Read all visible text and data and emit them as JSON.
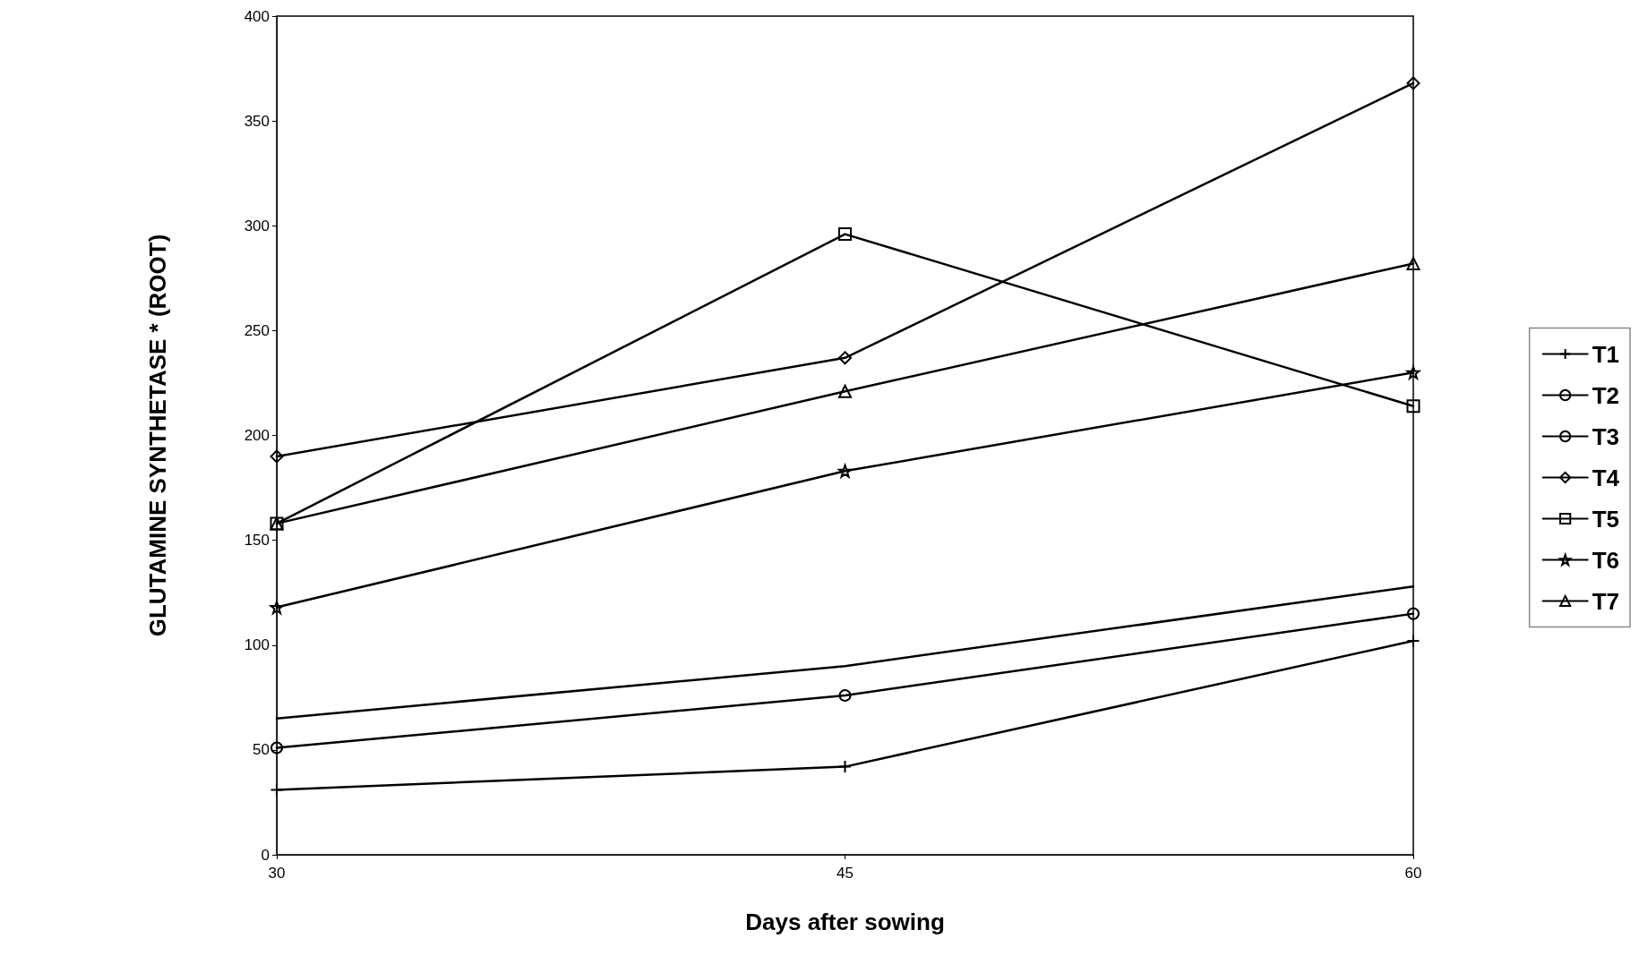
{
  "chart_data": {
    "type": "line",
    "xlabel": "Days after sowing",
    "ylabel": "GLUTAMINE SYNTHETASE * (ROOT)",
    "x": [
      30,
      45,
      60
    ],
    "xlim": [
      30,
      60
    ],
    "xticks": [
      30,
      45,
      60
    ],
    "ylim": [
      0,
      400
    ],
    "yticks": [
      0,
      50,
      100,
      150,
      200,
      250,
      300,
      350,
      400
    ],
    "grid": false,
    "legend": "right",
    "line_style": "solid",
    "series": [
      {
        "name": "T1",
        "color": "#000000",
        "marker": "cross",
        "values": [
          31,
          42,
          102
        ]
      },
      {
        "name": "T2",
        "color": "#000000",
        "marker": "none",
        "values": [
          65,
          90,
          128
        ]
      },
      {
        "name": "T3",
        "color": "#000000",
        "marker": "circle",
        "values": [
          51,
          76,
          115
        ]
      },
      {
        "name": "T4",
        "color": "#000000",
        "marker": "diamond",
        "values": [
          190,
          237,
          368
        ]
      },
      {
        "name": "T5",
        "color": "#000000",
        "marker": "square",
        "values": [
          158,
          296,
          214
        ]
      },
      {
        "name": "T6",
        "color": "#000000",
        "marker": "star",
        "values": [
          118,
          183,
          230
        ]
      },
      {
        "name": "T7",
        "color": "#000000",
        "marker": "triangle",
        "values": [
          158,
          221,
          282
        ]
      }
    ]
  }
}
